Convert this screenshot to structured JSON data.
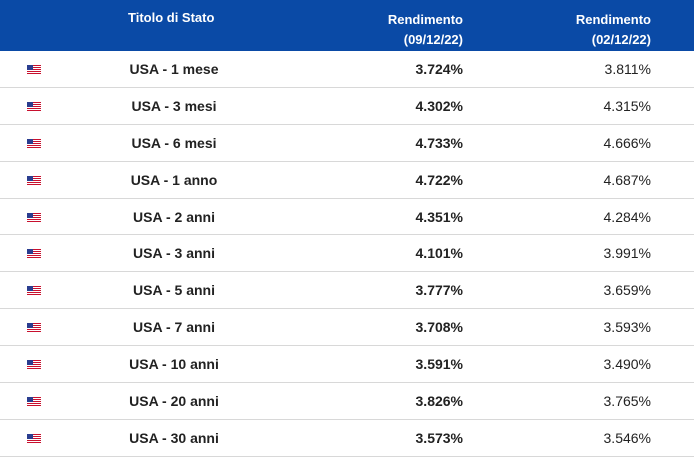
{
  "header": {
    "title_col": "Titolo di Stato",
    "yield1_label": "Rendimento",
    "yield1_date": "(09/12/22)",
    "yield2_label": "Rendimento",
    "yield2_date": "(02/12/22)"
  },
  "colors": {
    "header_bg": "#0a4aa6",
    "row_border": "#d8d8d8"
  },
  "rows": [
    {
      "flag": "us-flag-icon",
      "name": "USA - 1 mese",
      "y1": "3.724%",
      "y2": "3.811%"
    },
    {
      "flag": "us-flag-icon",
      "name": "USA - 3 mesi",
      "y1": "4.302%",
      "y2": "4.315%"
    },
    {
      "flag": "us-flag-icon",
      "name": "USA - 6 mesi",
      "y1": "4.733%",
      "y2": "4.666%"
    },
    {
      "flag": "us-flag-icon",
      "name": "USA - 1 anno",
      "y1": "4.722%",
      "y2": "4.687%"
    },
    {
      "flag": "us-flag-icon",
      "name": "USA - 2 anni",
      "y1": "4.351%",
      "y2": "4.284%"
    },
    {
      "flag": "us-flag-icon",
      "name": "USA - 3 anni",
      "y1": "4.101%",
      "y2": "3.991%"
    },
    {
      "flag": "us-flag-icon",
      "name": "USA - 5 anni",
      "y1": "3.777%",
      "y2": "3.659%"
    },
    {
      "flag": "us-flag-icon",
      "name": "USA - 7 anni",
      "y1": "3.708%",
      "y2": "3.593%"
    },
    {
      "flag": "us-flag-icon",
      "name": "USA - 10 anni",
      "y1": "3.591%",
      "y2": "3.490%"
    },
    {
      "flag": "us-flag-icon",
      "name": "USA - 20 anni",
      "y1": "3.826%",
      "y2": "3.765%"
    },
    {
      "flag": "us-flag-icon",
      "name": "USA - 30 anni",
      "y1": "3.573%",
      "y2": "3.546%"
    }
  ]
}
